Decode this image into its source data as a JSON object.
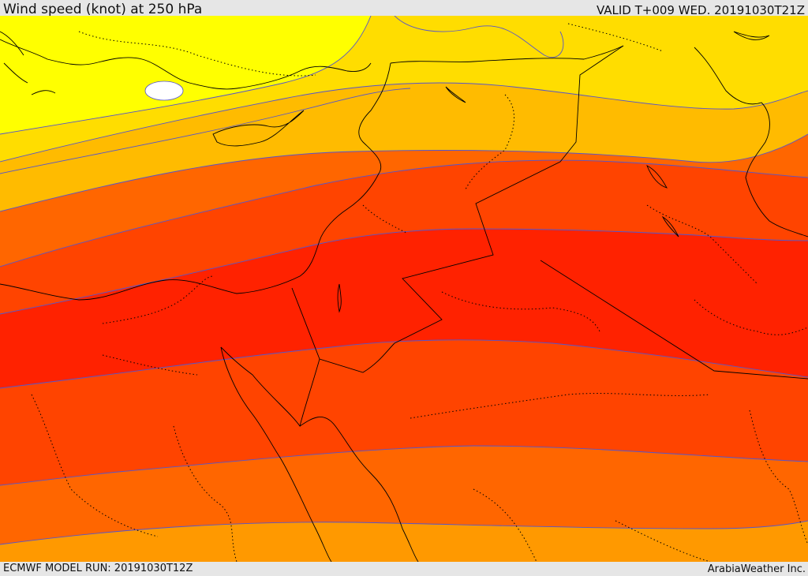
{
  "header": {
    "title": "Wind speed (knot) at 250 hPa",
    "valid": "VALID T+009 WED. 20191030T21Z"
  },
  "footer": {
    "model_run": "ECMWF MODEL RUN: 20191030T12Z",
    "provider": "ArabiaWeather Inc."
  },
  "colors": {
    "band_1": "#ffff00",
    "band_2": "#ffdd00",
    "band_3": "#ffbb00",
    "band_4": "#ff9900",
    "band_5": "#ff6600",
    "band_6": "#ff4400",
    "band_7": "#ff2200",
    "contour": "#5555cc",
    "border": "#000000"
  }
}
